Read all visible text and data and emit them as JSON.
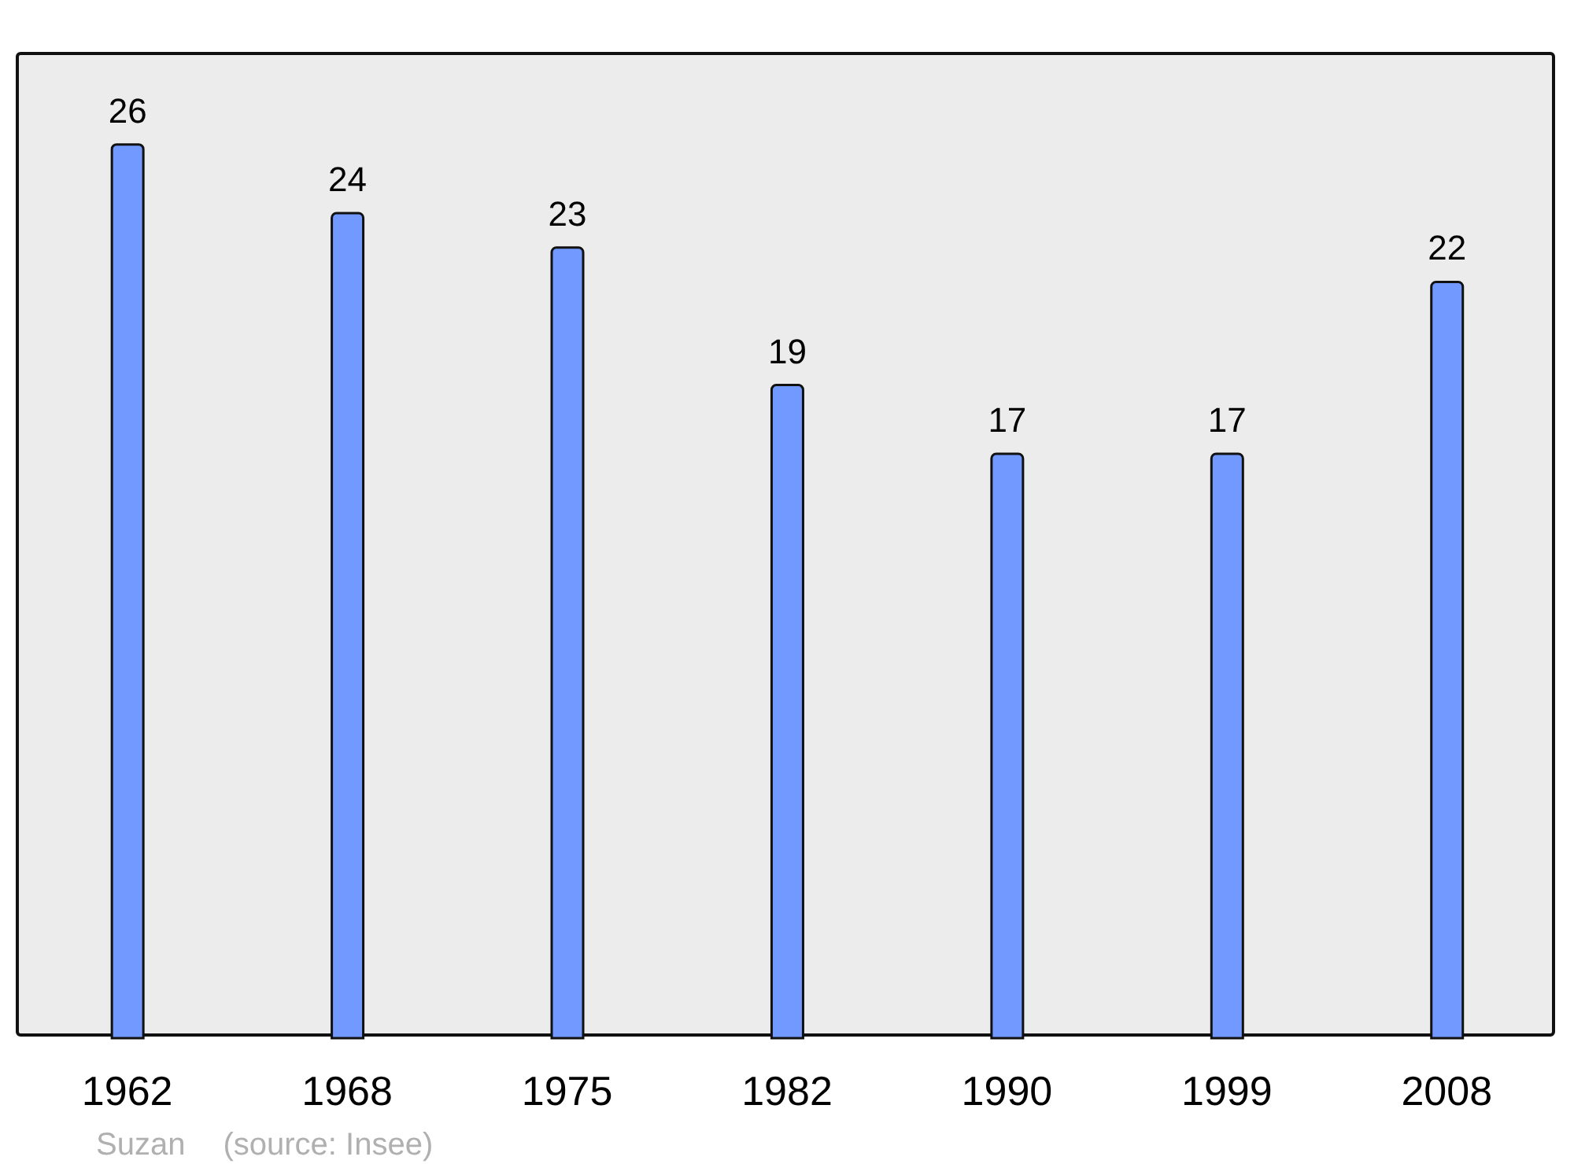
{
  "chart_data": {
    "type": "bar",
    "categories": [
      "1962",
      "1968",
      "1975",
      "1982",
      "1990",
      "1999",
      "2008"
    ],
    "values": [
      26,
      24,
      23,
      19,
      17,
      17,
      22
    ],
    "color": "#7299ff",
    "data_labels": true,
    "grid": false,
    "legend": false,
    "annotations": [
      "Suzan",
      "(source: Insee)"
    ]
  }
}
